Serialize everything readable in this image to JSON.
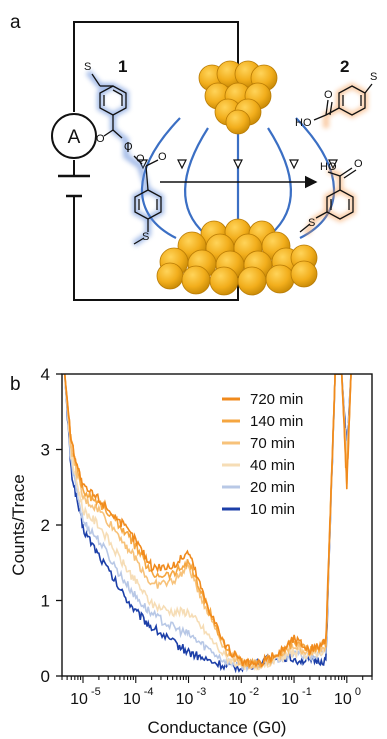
{
  "panel_a": {
    "label": "a",
    "meter_symbol": "A",
    "molecule_1_label": "1",
    "molecule_2_label": "2",
    "molecule_1_atoms": {
      "s_top": "S",
      "s_bottom": "S",
      "o1": "O",
      "o2": "O",
      "o3": "O",
      "o4": "O"
    },
    "molecule_2_atoms": {
      "s_top": "S",
      "ho_top": "HO",
      "o_top": "O",
      "ho_bottom": "HO",
      "o_bottom": "O",
      "s_bottom": "S"
    },
    "colors": {
      "molecule_1_glow": "#5b86d6",
      "molecule_2_glow": "#f5a25c",
      "gold": "#f2ae1c",
      "gold_dark": "#b87b05",
      "field_lines": "#3b6fc4"
    }
  },
  "panel_b": {
    "label": "b",
    "chart_data": {
      "type": "line",
      "xlabel": "Conductance (G0)",
      "ylabel": "Counts/Trace",
      "xscale": "log",
      "xlim": [
        4e-06,
        3
      ],
      "ylim": [
        0,
        4
      ],
      "yticks": [
        0,
        1,
        2,
        3,
        4
      ],
      "xticks": [
        {
          "base": "10",
          "exp": "-5",
          "value": 1e-05
        },
        {
          "base": "10",
          "exp": "-4",
          "value": 0.0001
        },
        {
          "base": "10",
          "exp": "-3",
          "value": 0.001
        },
        {
          "base": "10",
          "exp": "-2",
          "value": 0.01
        },
        {
          "base": "10",
          "exp": "-1",
          "value": 0.1
        },
        {
          "base": "10",
          "exp": "0",
          "value": 1
        }
      ],
      "legend_position": "top-right",
      "grid": false,
      "x": [
        4.5e-06,
        6e-06,
        1e-05,
        2e-05,
        5e-05,
        0.0001,
        0.0002,
        0.0005,
        0.001,
        0.002,
        0.005,
        0.01,
        0.02,
        0.05,
        0.1,
        0.2,
        0.4,
        0.6,
        0.8,
        1.0,
        1.2
      ],
      "series": [
        {
          "name": "720 min",
          "color": "#f08a1c",
          "values": [
            4.0,
            3.1,
            2.5,
            2.35,
            2.05,
            1.8,
            1.45,
            1.45,
            1.65,
            1.05,
            0.4,
            0.18,
            0.15,
            0.3,
            0.5,
            0.35,
            0.45,
            4.0,
            4.0,
            2.5,
            4.0
          ]
        },
        {
          "name": "140 min",
          "color": "#f5a640",
          "values": [
            4.0,
            3.1,
            2.45,
            2.3,
            2.0,
            1.72,
            1.35,
            1.35,
            1.52,
            1.0,
            0.38,
            0.18,
            0.15,
            0.28,
            0.45,
            0.33,
            0.42,
            4.0,
            4.0,
            2.6,
            4.0
          ]
        },
        {
          "name": "70 min",
          "color": "#f7c27a",
          "values": [
            4.0,
            3.0,
            2.35,
            2.2,
            1.85,
            1.55,
            1.2,
            1.25,
            1.45,
            0.95,
            0.35,
            0.17,
            0.14,
            0.25,
            0.4,
            0.3,
            0.4,
            4.0,
            4.0,
            2.7,
            4.0
          ]
        },
        {
          "name": "40 min",
          "color": "#f6ddb6",
          "values": [
            4.0,
            2.9,
            2.2,
            2.0,
            1.55,
            1.25,
            0.95,
            0.85,
            0.85,
            0.6,
            0.25,
            0.14,
            0.14,
            0.22,
            0.32,
            0.28,
            0.35,
            4.0,
            4.0,
            2.8,
            4.0
          ]
        },
        {
          "name": "20 min",
          "color": "#b8c8e6",
          "values": [
            4.0,
            2.8,
            2.05,
            1.8,
            1.35,
            1.05,
            0.82,
            0.65,
            0.55,
            0.4,
            0.2,
            0.14,
            0.15,
            0.22,
            0.3,
            0.25,
            0.3,
            4.0,
            4.0,
            2.9,
            4.0
          ]
        },
        {
          "name": "10 min",
          "color": "#1c3fa8",
          "values": [
            4.0,
            2.7,
            1.95,
            1.6,
            1.15,
            0.85,
            0.65,
            0.45,
            0.32,
            0.22,
            0.13,
            0.12,
            0.16,
            0.28,
            0.22,
            0.2,
            0.2,
            4.0,
            4.0,
            3.0,
            4.0
          ]
        }
      ]
    }
  }
}
